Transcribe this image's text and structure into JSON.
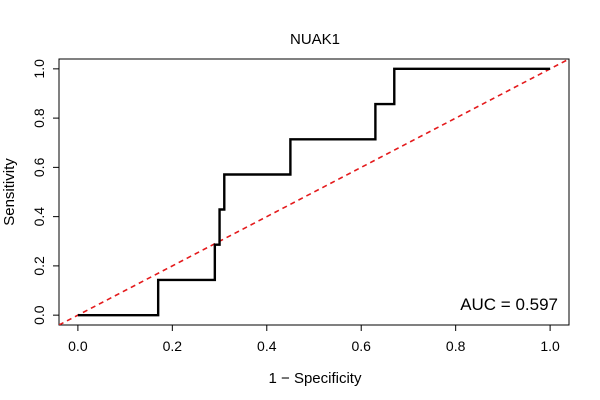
{
  "chart_data": {
    "type": "line",
    "title": "NUAK1",
    "xlabel": "1 − Specificity",
    "ylabel": "Sensitivity",
    "xlim": [
      -0.04,
      1.04
    ],
    "ylim": [
      -0.04,
      1.04
    ],
    "xticks": [
      0.0,
      0.2,
      0.4,
      0.6,
      0.8,
      1.0
    ],
    "xtick_labels": [
      "0.0",
      "0.2",
      "0.4",
      "0.6",
      "0.8",
      "1.0"
    ],
    "yticks": [
      0.0,
      0.2,
      0.4,
      0.6,
      0.8,
      1.0
    ],
    "ytick_labels": [
      "0.0",
      "0.2",
      "0.4",
      "0.6",
      "0.8",
      "1.0"
    ],
    "grid": false,
    "series": [
      {
        "color": "#000000",
        "style": "solid",
        "x": [
          0.0,
          0.17,
          0.17,
          0.29,
          0.29,
          0.3,
          0.3,
          0.31,
          0.31,
          0.45,
          0.45,
          0.63,
          0.63,
          0.67,
          0.67,
          1.0
        ],
        "y": [
          0.0,
          0.0,
          0.143,
          0.143,
          0.286,
          0.286,
          0.429,
          0.429,
          0.571,
          0.571,
          0.714,
          0.714,
          0.857,
          0.857,
          1.0,
          1.0
        ]
      },
      {
        "color": "#e41a1c",
        "style": "dashed",
        "x": [
          -0.04,
          1.04
        ],
        "y": [
          -0.04,
          1.04
        ]
      }
    ],
    "annotation": {
      "text": "AUC = 0.597",
      "position": "bottom-right"
    }
  }
}
